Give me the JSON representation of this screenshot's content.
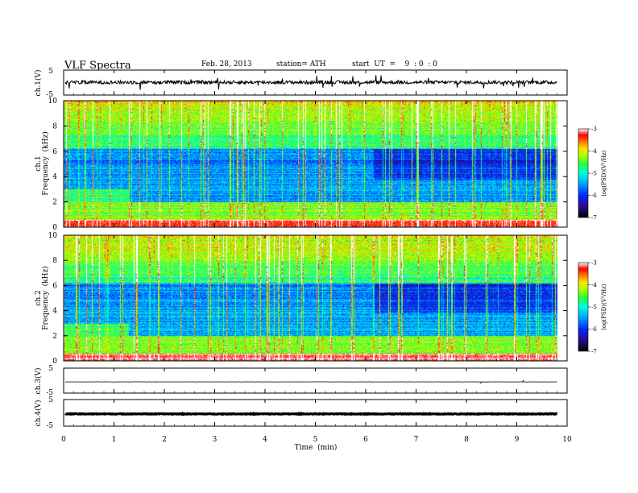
{
  "header": {
    "title": "VLF  Spectra",
    "date": "Feb. 28, 2013",
    "station": "station= ATH",
    "start": "start  UT  =    9  : 0  : 0"
  },
  "chart_data": [
    {
      "type": "line",
      "panel": "ch1-waveform",
      "ylabel": "ch.1(V)",
      "yticks": [
        "5",
        "-5"
      ],
      "ylim": [
        -5,
        5
      ],
      "xlim": [
        0,
        10
      ],
      "series": [
        {
          "baseline": 0.1,
          "trace_extent_min": 9.8
        }
      ]
    },
    {
      "type": "heatmap",
      "panel": "ch1-spectrogram",
      "ylabel": [
        "ch.1",
        "Frequency  (kHz)"
      ],
      "yticks": [
        "0",
        "2",
        "4",
        "6",
        "8",
        "10"
      ],
      "ylim": [
        0,
        10
      ],
      "xlim": [
        0,
        10
      ],
      "data_extent_min": 9.8,
      "transition_min": 6.15,
      "colorbar": {
        "label": "log(PSD)(V²/Hz)",
        "ticks": [
          "-3",
          "-4",
          "-5",
          "-6",
          "-7"
        ],
        "range": [
          -7,
          -3
        ]
      }
    },
    {
      "type": "heatmap",
      "panel": "ch2-spectrogram",
      "ylabel": [
        "ch.2",
        "Frequency  (kHz)"
      ],
      "yticks": [
        "0",
        "2",
        "4",
        "6",
        "8",
        "10"
      ],
      "ylim": [
        0,
        10
      ],
      "xlim": [
        0,
        10
      ],
      "data_extent_min": 9.8,
      "transition_min": 6.15,
      "colorbar": {
        "label": "log(PSD)(V²/Hz)",
        "ticks": [
          "-3",
          "-4",
          "-5",
          "-6",
          "-7"
        ],
        "range": [
          -7,
          -3
        ]
      }
    },
    {
      "type": "line",
      "panel": "ch3-waveform",
      "ylabel": "ch.3(V)",
      "yticks": [
        "5",
        "-5"
      ],
      "ylim": [
        -5,
        5
      ],
      "xlim": [
        0,
        10
      ],
      "series": [
        {
          "baseline": -0.5,
          "trace_extent_min": 9.8
        }
      ]
    },
    {
      "type": "line",
      "panel": "ch4-waveform",
      "ylabel": "ch.4(V)",
      "yticks": [
        "5",
        "-5"
      ],
      "ylim": [
        -5,
        5
      ],
      "xlim": [
        0,
        10
      ],
      "series": [
        {
          "baseline": -0.4,
          "trace_extent_min": 9.8
        }
      ]
    }
  ],
  "xaxis": {
    "label": "Time  (min)",
    "ticks": [
      "0",
      "1",
      "2",
      "3",
      "4",
      "5",
      "6",
      "7",
      "8",
      "9",
      "10"
    ]
  },
  "colors": {
    "colormap": [
      "#000000",
      "#2a0a8a",
      "#0028ff",
      "#00a0ff",
      "#00ffe0",
      "#20ff40",
      "#b0ff00",
      "#ffe000",
      "#ff7000",
      "#ff0000",
      "#ffffff"
    ]
  }
}
